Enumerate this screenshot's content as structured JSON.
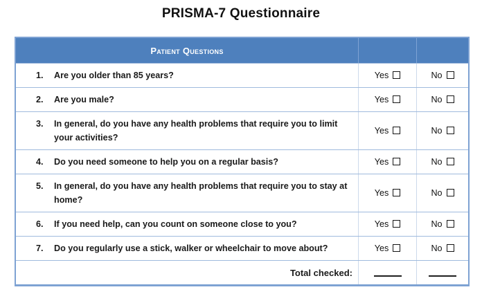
{
  "page": {
    "title": "PRISMA-7 Questionnaire"
  },
  "table": {
    "header": {
      "questions_label": "Patient Questions",
      "yes_column_label": "",
      "no_column_label": ""
    },
    "yes_label": "Yes",
    "no_label": "No",
    "checkbox_icon": "empty-checkbox",
    "questions": [
      {
        "number": "1.",
        "text": "Are you older than 85 years?"
      },
      {
        "number": "2.",
        "text": "Are you male?"
      },
      {
        "number": "3.",
        "text": "In general, do you have any health problems that require you to limit your activities?"
      },
      {
        "number": "4.",
        "text": "Do you need someone to help you on a regular basis?"
      },
      {
        "number": "5.",
        "text": "In general, do you have any health problems that require you to stay at home?"
      },
      {
        "number": "6.",
        "text": "If you need help, can you count on someone close to you?"
      },
      {
        "number": "7.",
        "text": "Do you regularly use a stick, walker or wheelchair to move about?"
      }
    ],
    "total": {
      "label": "Total checked:",
      "yes_blank": "_____",
      "no_blank": "_____"
    }
  },
  "colors": {
    "header_bg": "#4E80BD",
    "outer_border": "#7EA2D3",
    "row_separator": "#9FBADD",
    "header_divider": "#7FA3D4",
    "body_divider": "#CCD9EB",
    "header_text": "#FFFFFF",
    "body_text": "#1A1A1A",
    "checkbox_border": "#141414"
  }
}
